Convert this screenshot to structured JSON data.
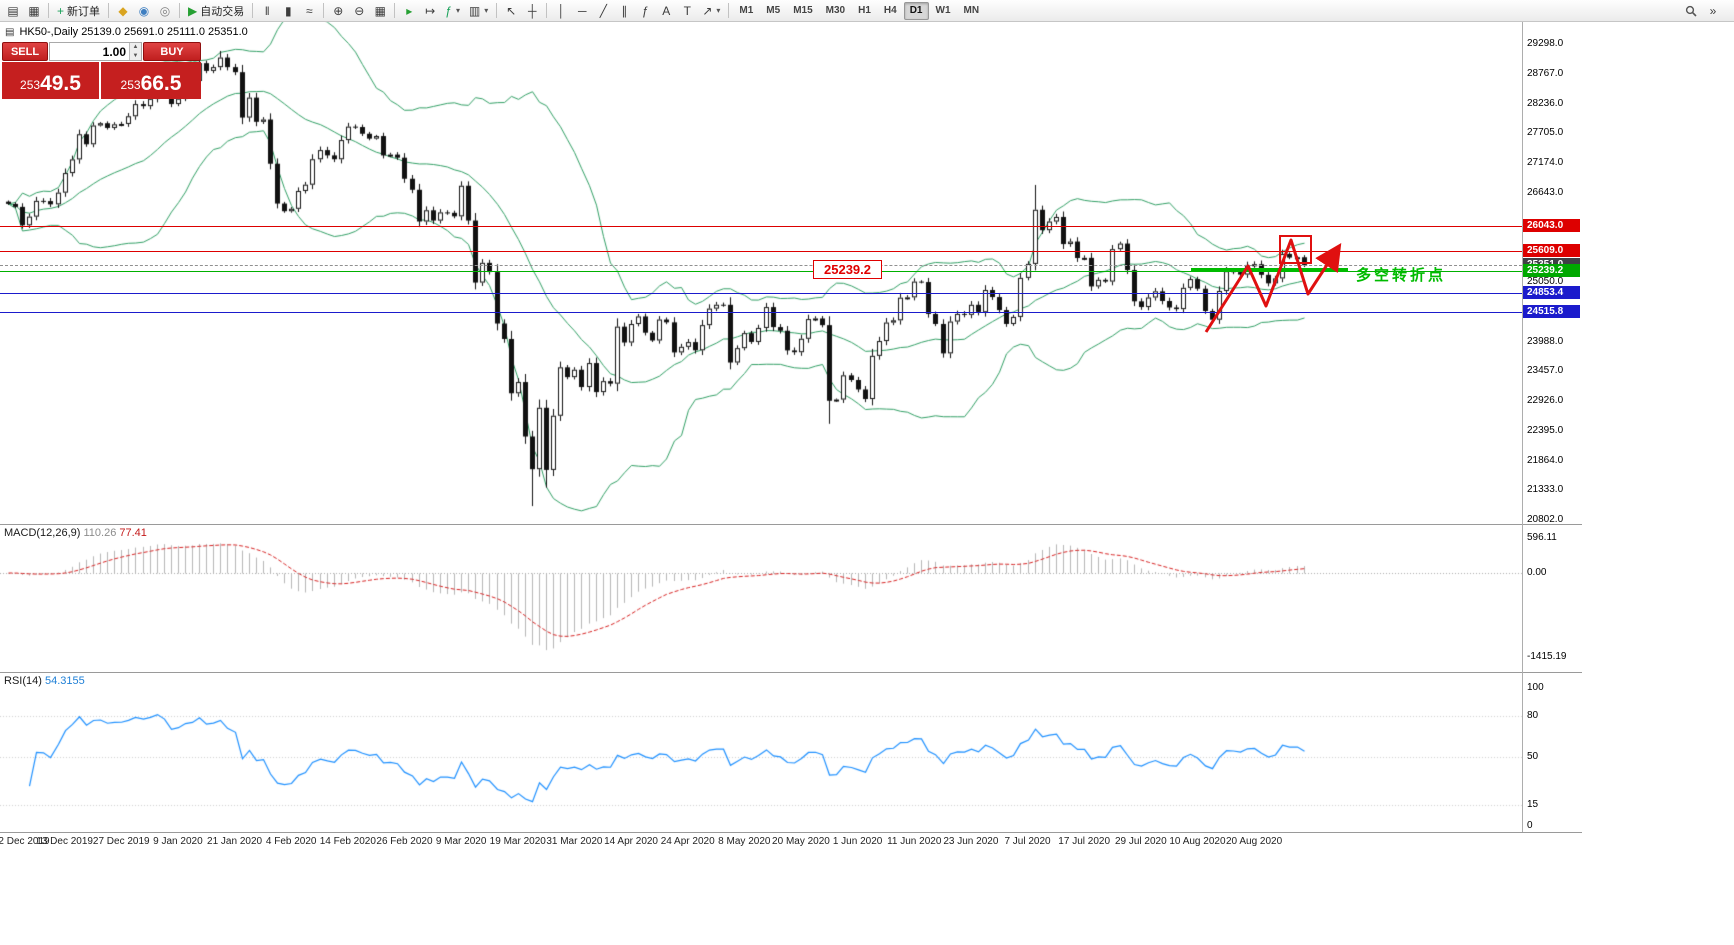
{
  "toolbar": {
    "groups": [
      {
        "items": [
          {
            "name": "chart-window-icon",
            "glyph": "▤"
          },
          {
            "name": "new-chart-icon",
            "glyph": "▦"
          }
        ]
      },
      {
        "items": [
          {
            "name": "new-order-button",
            "glyph": "+",
            "glyph_color": "#18a058",
            "label": "新订单"
          }
        ]
      },
      {
        "items": [
          {
            "name": "metaquotes-icon",
            "glyph": "◆",
            "glyph_color": "#d9a420"
          },
          {
            "name": "expert-advisors-icon",
            "glyph": "◉",
            "glyph_color": "#3f7fc1"
          },
          {
            "name": "market-icon",
            "glyph": "◎",
            "glyph_color": "#7f7f7f"
          }
        ]
      },
      {
        "items": [
          {
            "name": "auto-trading-button",
            "glyph": "▶",
            "glyph_color": "#26a033",
            "label": "自动交易"
          }
        ]
      },
      {
        "items": [
          {
            "name": "bars-chart-icon",
            "glyph": "‖"
          },
          {
            "name": "candlestick-chart-icon",
            "glyph": "▮"
          },
          {
            "name": "line-chart-icon",
            "glyph": "≈"
          }
        ]
      },
      {
        "items": [
          {
            "name": "zoom-in-icon",
            "glyph": "⊕"
          },
          {
            "name": "zoom-out-icon",
            "glyph": "⊖"
          },
          {
            "name": "tile-windows-icon",
            "glyph": "▦"
          }
        ]
      },
      {
        "items": [
          {
            "name": "auto-scroll-icon",
            "glyph": "▸",
            "glyph_color": "#26a033"
          },
          {
            "name": "chart-shift-icon",
            "glyph": "↦"
          },
          {
            "name": "indicators-icon",
            "glyph": "ƒ",
            "glyph_color": "#18a058",
            "caret": true
          },
          {
            "name": "templates-icon",
            "glyph": "▥",
            "caret": true
          }
        ]
      },
      {
        "items": [
          {
            "name": "cursor-icon",
            "glyph": "↖"
          },
          {
            "name": "crosshair-icon",
            "glyph": "┼"
          }
        ]
      },
      {
        "items": [
          {
            "name": "vertical-line-icon",
            "glyph": "│"
          },
          {
            "name": "horizontal-line-icon",
            "glyph": "─"
          },
          {
            "name": "trendline-icon",
            "glyph": "╱"
          },
          {
            "name": "channel-icon",
            "glyph": "∥"
          },
          {
            "name": "fibonacci-icon",
            "glyph": "ƒ"
          },
          {
            "name": "text-tool-icon",
            "glyph": "A"
          },
          {
            "name": "label-tool-icon",
            "glyph": "T"
          },
          {
            "name": "arrows-tool-icon",
            "glyph": "↗",
            "caret": true
          }
        ]
      }
    ],
    "timeframes": [
      "M1",
      "M5",
      "M15",
      "M30",
      "H1",
      "H4",
      "D1",
      "W1",
      "MN"
    ],
    "active_timeframe": "D1",
    "right_items": [
      {
        "name": "search-icon",
        "svg": "magnifier"
      },
      {
        "name": "toolbar-overflow-icon",
        "glyph": "»"
      }
    ]
  },
  "header": {
    "icon_glyph": "▤",
    "symbol_line": "HK50-,Daily  25139.0 25691.0 25111.0 25351.0"
  },
  "one_click": {
    "sell_label": "SELL",
    "buy_label": "BUY",
    "volume": "1.00",
    "sell_price": "25349.5",
    "buy_price": "25366.5"
  },
  "annotations": {
    "price_label": "25239.2",
    "turning_point_text": "多空转折点",
    "bull_green": "#00bb00",
    "signal_red": "#e01010"
  },
  "price_axis": {
    "labels": [
      "29298.0",
      "28767.0",
      "28236.0",
      "27705.0",
      "27174.0",
      "26643.0",
      "25050.0",
      "23988.0",
      "23457.0",
      "22926.0",
      "22395.0",
      "21864.0",
      "21333.0",
      "20802.0"
    ],
    "min": 20802.0,
    "max": 29298.0
  },
  "macd_panel": {
    "title": "MACD(12,26,9)",
    "value_main": "110.26",
    "value_signal": "77.41",
    "axis": [
      "596.11",
      "0.00",
      "-1415.19"
    ]
  },
  "rsi_panel": {
    "title": "RSI(14)",
    "value": "54.3155",
    "axis": [
      "100",
      "80",
      "50",
      "15",
      "0"
    ]
  },
  "date_axis": [
    "2 Dec 2019",
    "13 Dec 2019",
    "27 Dec 2019",
    "9 Jan 2020",
    "21 Jan 2020",
    "4 Feb 2020",
    "14 Feb 2020",
    "26 Feb 2020",
    "9 Mar 2020",
    "19 Mar 2020",
    "31 Mar 2020",
    "14 Apr 2020",
    "24 Apr 2020",
    "8 May 2020",
    "20 May 2020",
    "1 Jun 2020",
    "11 Jun 2020",
    "23 Jun 2020",
    "7 Jul 2020",
    "17 Jul 2020",
    "29 Jul 2020",
    "10 Aug 2020",
    "20 Aug 2020"
  ],
  "chart_data": {
    "type": "candlestick",
    "symbol": "HK50",
    "period": "Daily",
    "ohlc_header": {
      "open": 25139.0,
      "high": 25691.0,
      "low": 25111.0,
      "close": 25351.0
    },
    "start_date": "2 Dec 2019",
    "end_date": "27 Aug 2020",
    "closes": [
      26444,
      26391,
      26062,
      26217,
      26498,
      26494,
      26436,
      26645,
      26994,
      27238,
      27687,
      27508,
      27843,
      27884,
      27800,
      27864,
      27871,
      28008,
      28225,
      28189,
      28319,
      28543,
      28451,
      28226,
      28322,
      28561,
      28638,
      28956,
      28818,
      28885,
      29056,
      28885,
      28795,
      27985,
      28341,
      27909,
      27950,
      27161,
      26450,
      26313,
      26357,
      26675,
      26787,
      27241,
      27404,
      27310,
      27241,
      27583,
      27823,
      27816,
      27696,
      27609,
      27655,
      27309,
      27324,
      27269,
      26893,
      26696,
      26130,
      26330,
      26146,
      26292,
      26285,
      26222,
      26768,
      26147,
      25040,
      25392,
      25232,
      24309,
      24033,
      23064,
      23264,
      22292,
      21709,
      22805,
      21696,
      22663,
      23527,
      23352,
      23484,
      23175,
      23603,
      23085,
      23280,
      23236,
      24253,
      23970,
      24300,
      24435,
      24145,
      24006,
      24380,
      24330,
      23793,
      23893,
      23977,
      23831,
      24280,
      24575,
      24644,
      24643,
      23613,
      23869,
      24137,
      23980,
      24230,
      24602,
      24245,
      24180,
      23829,
      23797,
      24037,
      24388,
      24399,
      24280,
      22930,
      22952,
      23384,
      23301,
      23132,
      22961,
      23732,
      23996,
      24326,
      24366,
      24770,
      24776,
      25057,
      25049,
      24480,
      24301,
      23776,
      24344,
      24481,
      24464,
      24643,
      24511,
      24907,
      24781,
      24549,
      24301,
      24427,
      25124,
      25373,
      26339,
      25975,
      26129,
      26211,
      25727,
      25772,
      25478,
      25481,
      24971,
      25089,
      25058,
      25636,
      25736,
      25263,
      24705,
      24603,
      24773,
      24883,
      24711,
      24595,
      24566,
      24946,
      25102,
      24930,
      24532,
      24377,
      24890,
      25244,
      25230,
      25183,
      25347,
      25367,
      25178,
      25026,
      25114,
      25551,
      25486,
      25492,
      25351
    ],
    "wick_overrides": {
      "highs": {
        "30": 29174,
        "145": 26782
      },
      "lows": {
        "74": 21050,
        "76": 21380,
        "116": 22519
      }
    },
    "indicators": [
      {
        "name": "Bollinger Bands",
        "period": 20,
        "deviation": 2,
        "color": "#2f9e63"
      },
      {
        "name": "MACD",
        "fast": 12,
        "slow": 26,
        "signal": 9,
        "current_main": 110.26,
        "current_signal": 77.41,
        "axis_max": 596.11,
        "axis_min": -1415.19
      },
      {
        "name": "RSI",
        "period": 14,
        "current": 54.3155,
        "levels": [
          80,
          50,
          15
        ]
      }
    ],
    "horizontal_levels": [
      {
        "price": 26043.0,
        "color": "red"
      },
      {
        "price": 25609.0,
        "color": "red"
      },
      {
        "price": 25351.0,
        "color": "dark"
      },
      {
        "price": 25239.2,
        "color": "green"
      },
      {
        "price": 24853.4,
        "color": "blue"
      },
      {
        "price": 24515.8,
        "color": "blue"
      }
    ]
  }
}
